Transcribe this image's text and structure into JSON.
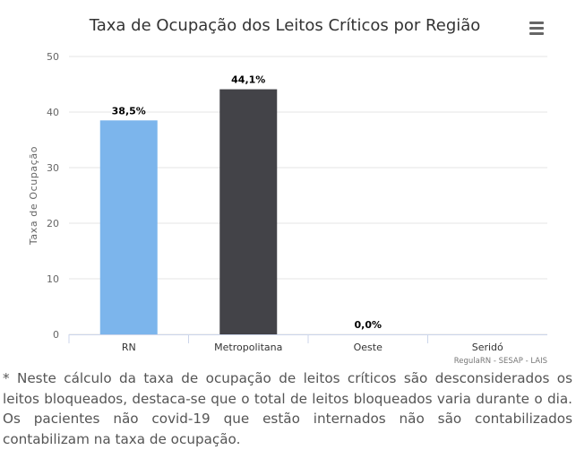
{
  "chart_data": {
    "type": "bar",
    "title": "Taxa de Ocupação dos Leitos Críticos por Região",
    "ylabel": "Taxa de Ocupação",
    "ylim": [
      0,
      50
    ],
    "yticks": [
      "0",
      "10",
      "20",
      "30",
      "40",
      "50"
    ],
    "grid": true,
    "categories": [
      "RN",
      "Metropolitana",
      "Oeste",
      "Seridó"
    ],
    "values": [
      38.5,
      44.1,
      0.0,
      null
    ],
    "data_labels": [
      "38,5%",
      "44,1%",
      "0,0%",
      ""
    ],
    "colors": [
      "#7cb5ec",
      "#434348",
      "#90ed7d",
      "#f7a35c"
    ],
    "credits": "RegulaRN - SESAP - LAIS"
  },
  "menu": {
    "icon": "hamburger-menu-icon"
  },
  "footnote": "* Neste cálculo da taxa de ocupação de leitos críticos são desconsiderados os leitos bloqueados, destaca-se que o total de leitos bloqueados varia durante o dia. Os pacientes não covid-19 que estão internados não são contabilizados contabilizam na taxa de ocupação."
}
